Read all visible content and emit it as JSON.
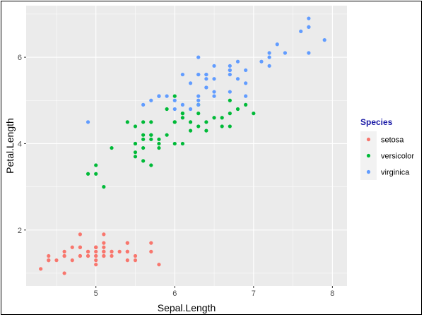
{
  "chart_data": {
    "type": "scatter",
    "title": "",
    "xlabel": "Sepal.Length",
    "ylabel": "Petal.Length",
    "xlim": [
      4.3,
      8.0
    ],
    "ylim": [
      1.0,
      6.9
    ],
    "xticks": [
      5,
      6,
      7,
      8
    ],
    "yticks": [
      2,
      4,
      6
    ],
    "grid": true,
    "legend": {
      "title": "Species",
      "placement": "right"
    },
    "series": [
      {
        "name": "setosa",
        "color": "#F8766D",
        "points": [
          [
            5.1,
            1.4
          ],
          [
            4.9,
            1.4
          ],
          [
            4.7,
            1.3
          ],
          [
            4.6,
            1.5
          ],
          [
            5.0,
            1.4
          ],
          [
            5.4,
            1.7
          ],
          [
            4.6,
            1.4
          ],
          [
            5.0,
            1.5
          ],
          [
            4.4,
            1.4
          ],
          [
            4.9,
            1.5
          ],
          [
            5.4,
            1.5
          ],
          [
            4.8,
            1.6
          ],
          [
            4.8,
            1.4
          ],
          [
            4.3,
            1.1
          ],
          [
            5.8,
            1.2
          ],
          [
            5.7,
            1.5
          ],
          [
            5.4,
            1.3
          ],
          [
            5.1,
            1.4
          ],
          [
            5.7,
            1.7
          ],
          [
            5.1,
            1.5
          ],
          [
            5.4,
            1.7
          ],
          [
            5.1,
            1.5
          ],
          [
            4.6,
            1.0
          ],
          [
            5.1,
            1.7
          ],
          [
            4.8,
            1.9
          ],
          [
            5.0,
            1.6
          ],
          [
            5.0,
            1.6
          ],
          [
            5.2,
            1.5
          ],
          [
            5.2,
            1.4
          ],
          [
            4.7,
            1.6
          ],
          [
            4.8,
            1.6
          ],
          [
            5.4,
            1.5
          ],
          [
            5.2,
            1.5
          ],
          [
            5.5,
            1.4
          ],
          [
            4.9,
            1.5
          ],
          [
            5.0,
            1.2
          ],
          [
            5.5,
            1.3
          ],
          [
            4.9,
            1.4
          ],
          [
            4.4,
            1.3
          ],
          [
            5.1,
            1.5
          ],
          [
            5.0,
            1.3
          ],
          [
            4.5,
            1.3
          ],
          [
            4.4,
            1.3
          ],
          [
            5.0,
            1.6
          ],
          [
            5.1,
            1.9
          ],
          [
            4.8,
            1.4
          ],
          [
            5.1,
            1.6
          ],
          [
            4.6,
            1.4
          ],
          [
            5.3,
            1.5
          ],
          [
            5.0,
            1.4
          ]
        ]
      },
      {
        "name": "versicolor",
        "color": "#00BA38",
        "points": [
          [
            7.0,
            4.7
          ],
          [
            6.4,
            4.5
          ],
          [
            6.9,
            4.9
          ],
          [
            5.5,
            4.0
          ],
          [
            6.5,
            4.6
          ],
          [
            5.7,
            4.5
          ],
          [
            6.3,
            4.7
          ],
          [
            4.9,
            3.3
          ],
          [
            6.6,
            4.6
          ],
          [
            5.2,
            3.9
          ],
          [
            5.0,
            3.5
          ],
          [
            5.9,
            4.2
          ],
          [
            6.0,
            4.0
          ],
          [
            6.1,
            4.7
          ],
          [
            5.6,
            3.6
          ],
          [
            6.7,
            4.4
          ],
          [
            5.6,
            4.5
          ],
          [
            5.8,
            4.1
          ],
          [
            6.2,
            4.5
          ],
          [
            5.6,
            3.9
          ],
          [
            5.9,
            4.8
          ],
          [
            6.1,
            4.0
          ],
          [
            6.3,
            4.9
          ],
          [
            6.1,
            4.7
          ],
          [
            6.4,
            4.3
          ],
          [
            6.6,
            4.4
          ],
          [
            6.8,
            4.8
          ],
          [
            6.7,
            5.0
          ],
          [
            6.0,
            4.5
          ],
          [
            5.7,
            3.5
          ],
          [
            5.5,
            3.8
          ],
          [
            5.5,
            3.7
          ],
          [
            5.8,
            3.9
          ],
          [
            6.0,
            5.1
          ],
          [
            5.4,
            4.5
          ],
          [
            6.0,
            4.5
          ],
          [
            6.7,
            4.7
          ],
          [
            6.3,
            4.4
          ],
          [
            5.6,
            4.1
          ],
          [
            5.5,
            4.0
          ],
          [
            5.5,
            4.4
          ],
          [
            6.1,
            4.6
          ],
          [
            5.8,
            4.0
          ],
          [
            5.0,
            3.3
          ],
          [
            5.6,
            4.2
          ],
          [
            5.7,
            4.2
          ],
          [
            5.7,
            4.2
          ],
          [
            6.2,
            4.3
          ],
          [
            5.1,
            3.0
          ],
          [
            5.7,
            4.1
          ]
        ]
      },
      {
        "name": "virginica",
        "color": "#619CFF",
        "points": [
          [
            6.3,
            6.0
          ],
          [
            5.8,
            5.1
          ],
          [
            7.1,
            5.9
          ],
          [
            6.3,
            5.6
          ],
          [
            6.5,
            5.8
          ],
          [
            7.6,
            6.6
          ],
          [
            4.9,
            4.5
          ],
          [
            7.3,
            6.3
          ],
          [
            6.7,
            5.8
          ],
          [
            7.2,
            6.1
          ],
          [
            6.5,
            5.1
          ],
          [
            6.4,
            5.3
          ],
          [
            6.8,
            5.5
          ],
          [
            5.7,
            5.0
          ],
          [
            5.8,
            5.1
          ],
          [
            6.4,
            5.3
          ],
          [
            6.5,
            5.5
          ],
          [
            7.7,
            6.7
          ],
          [
            7.7,
            6.9
          ],
          [
            6.0,
            5.0
          ],
          [
            6.9,
            5.7
          ],
          [
            5.6,
            4.9
          ],
          [
            7.7,
            6.7
          ],
          [
            6.3,
            4.9
          ],
          [
            6.7,
            5.7
          ],
          [
            7.2,
            6.0
          ],
          [
            6.2,
            4.8
          ],
          [
            6.1,
            4.9
          ],
          [
            6.4,
            5.6
          ],
          [
            7.2,
            5.8
          ],
          [
            7.4,
            6.1
          ],
          [
            7.9,
            6.4
          ],
          [
            6.4,
            5.6
          ],
          [
            6.3,
            5.1
          ],
          [
            6.1,
            5.6
          ],
          [
            7.7,
            6.1
          ],
          [
            6.3,
            5.6
          ],
          [
            6.4,
            5.5
          ],
          [
            6.0,
            4.8
          ],
          [
            6.9,
            5.4
          ],
          [
            6.7,
            5.6
          ],
          [
            6.9,
            5.1
          ],
          [
            5.8,
            5.1
          ],
          [
            6.8,
            5.9
          ],
          [
            6.7,
            5.7
          ],
          [
            6.7,
            5.2
          ],
          [
            6.3,
            5.0
          ],
          [
            6.5,
            5.2
          ],
          [
            6.2,
            5.4
          ],
          [
            5.9,
            5.1
          ]
        ]
      }
    ]
  }
}
